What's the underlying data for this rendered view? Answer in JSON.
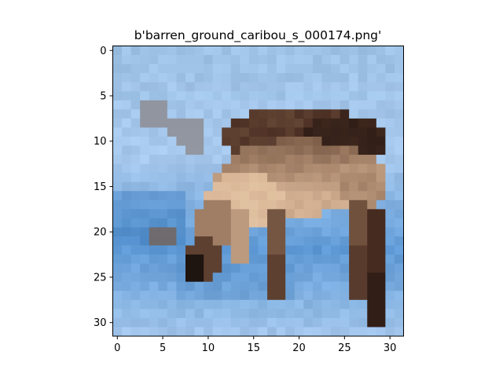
{
  "chart_data": {
    "type": "image",
    "title": "b'barren_ground_caribou_s_000174.png'",
    "xlabel": "",
    "ylabel": "",
    "xlim": [
      -0.5,
      31.5
    ],
    "ylim": [
      31.5,
      -0.5
    ],
    "xticks": [
      0,
      5,
      10,
      15,
      20,
      25,
      30
    ],
    "yticks": [
      0,
      5,
      10,
      15,
      20,
      25,
      30
    ],
    "image_size": [
      32,
      32
    ],
    "content": "pixelated photo of a caribou standing on snow against a blue background",
    "colors": {
      "sky": "#9ec2e6",
      "snow_light": "#a6c8ec",
      "snow_blue": "#5f9ad6",
      "snow_deep": "#3f7fc0",
      "fur_dark": "#4a2e22",
      "fur_mid": "#7a5a45",
      "fur_light": "#d8b596",
      "fur_pale": "#e6caa8",
      "shadow": "#1e1410"
    }
  }
}
